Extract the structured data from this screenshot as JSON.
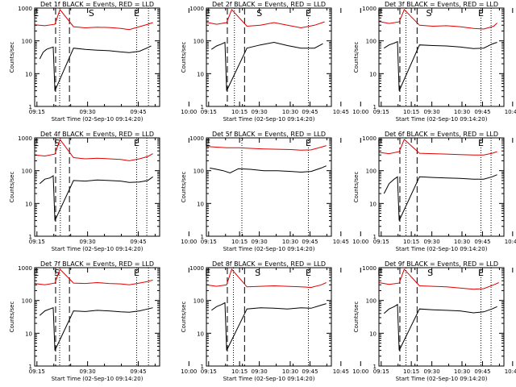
{
  "figure": {
    "panel_template": {
      "xlabel": "Start Time (02-Sep-10 09:14:20)",
      "ylabel": "Counts/sec",
      "x_tick_labels": [
        "09:15",
        "09:30",
        "09:45",
        "10:00",
        "10:15",
        "10:30",
        "10:45"
      ],
      "y_tick_labels": [
        "1",
        "10",
        "100",
        "1000"
      ]
    },
    "colors": {
      "events": "#000000",
      "lld": "#e00000",
      "axes": "#000000"
    }
  },
  "chart_data": [
    {
      "type": "line",
      "title": "Det 1f BLACK = Events, RED = LLD",
      "xlabel": "Start Time (02-Sep-10 09:14:20)",
      "ylabel": "Counts/sec",
      "x_unit": "minutes after 09:14:20",
      "xlim": [
        0,
        37
      ],
      "ylim": [
        1,
        1000
      ],
      "y_scale": "log",
      "grid": false,
      "markers": [
        {
          "label": "S",
          "x": 16.8
        },
        {
          "label": "E",
          "x": 0.4
        },
        {
          "label": "E",
          "x": 30.2
        }
      ],
      "dashed_lines_x": [
        6.2,
        10.3
      ],
      "dotted_lines_x": [
        7.4,
        30.2,
        33.7
      ],
      "series": [
        {
          "name": "Events",
          "color": "#000000",
          "x": [
            1.5,
            2.5,
            3.5,
            4.5,
            5.5,
            6.0,
            11.5,
            15.0,
            18.5,
            22.0,
            25.5,
            28.0,
            31.0,
            33.5,
            34.5
          ],
          "y": [
            28,
            45,
            55,
            60,
            65,
            3,
            60,
            55,
            52,
            50,
            46,
            44,
            48,
            62,
            70
          ]
        },
        {
          "name": "LLD",
          "color": "#e00000",
          "x": [
            0.0,
            3.0,
            6.0,
            7.5,
            11.5,
            15.0,
            18.5,
            22.0,
            25.5,
            28.0,
            31.0,
            33.5,
            35.0
          ],
          "y": [
            310,
            290,
            320,
            900,
            270,
            250,
            260,
            255,
            240,
            220,
            270,
            320,
            360
          ]
        }
      ]
    },
    {
      "type": "line",
      "title": "Det 2f BLACK = Events, RED = LLD",
      "xlabel": "Start Time (02-Sep-10 09:14:20)",
      "ylabel": "Counts/sec",
      "x_unit": "minutes after 09:14:20",
      "xlim": [
        0,
        37
      ],
      "ylim": [
        1,
        1000
      ],
      "y_scale": "log",
      "grid": false,
      "markers": [
        {
          "label": "S",
          "x": 15.7
        },
        {
          "label": "E",
          "x": 0.4
        },
        {
          "label": "E",
          "x": 30.2
        }
      ],
      "dashed_lines_x": [
        6.2,
        11.3
      ],
      "dotted_lines_x": [
        8.3,
        30.2
      ],
      "series": [
        {
          "name": "Events",
          "color": "#000000",
          "x": [
            1.5,
            3.0,
            4.5,
            5.5,
            6.0,
            12.0,
            16.0,
            20.0,
            24.0,
            28.0,
            32.0,
            34.5
          ],
          "y": [
            55,
            70,
            80,
            90,
            3,
            60,
            75,
            90,
            72,
            60,
            60,
            82
          ]
        },
        {
          "name": "LLD",
          "color": "#e00000",
          "x": [
            0.0,
            3.0,
            6.0,
            7.5,
            12.0,
            16.0,
            20.0,
            24.0,
            28.0,
            32.0,
            35.0
          ],
          "y": [
            370,
            320,
            360,
            900,
            280,
            300,
            360,
            300,
            250,
            300,
            380
          ]
        }
      ]
    },
    {
      "type": "line",
      "title": "Det 3f BLACK = Events, RED = LLD",
      "xlabel": "Start Time (02-Sep-10 09:14:20)",
      "ylabel": "Counts/sec",
      "x_unit": "minutes after 09:14:20",
      "xlim": [
        0,
        37
      ],
      "ylim": [
        1,
        1000
      ],
      "y_scale": "log",
      "grid": false,
      "markers": [
        {
          "label": "S",
          "x": 14.8
        },
        {
          "label": "E",
          "x": 0.4
        },
        {
          "label": "E",
          "x": 30.2
        }
      ],
      "dashed_lines_x": [
        6.2,
        11.3
      ],
      "dotted_lines_x": [
        8.0,
        30.2,
        33.2
      ],
      "series": [
        {
          "name": "Events",
          "color": "#000000",
          "x": [
            1.5,
            3.0,
            4.5,
            5.5,
            6.0,
            12.0,
            16.0,
            20.0,
            24.0,
            28.0,
            31.0,
            33.5,
            35.0
          ],
          "y": [
            60,
            75,
            85,
            95,
            3,
            75,
            72,
            70,
            65,
            58,
            60,
            80,
            90
          ]
        },
        {
          "name": "LLD",
          "color": "#e00000",
          "x": [
            0.0,
            3.0,
            6.0,
            7.5,
            12.0,
            16.0,
            20.0,
            24.0,
            28.0,
            31.0,
            34.0,
            35.0
          ],
          "y": [
            390,
            340,
            380,
            900,
            300,
            280,
            290,
            270,
            240,
            230,
            280,
            350
          ]
        }
      ]
    },
    {
      "type": "line",
      "title": "Det 4f BLACK = Events, RED = LLD",
      "xlabel": "Start Time (02-Sep-10 09:14:20)",
      "ylabel": "Counts/sec",
      "x_unit": "minutes after 09:14:20",
      "xlim": [
        0,
        37
      ],
      "ylim": [
        1,
        1000
      ],
      "y_scale": "log",
      "grid": false,
      "markers": [
        {
          "label": "S",
          "x": 6.6
        },
        {
          "label": "E",
          "x": 0.4
        },
        {
          "label": "E",
          "x": 30.2
        }
      ],
      "dashed_lines_x": [
        6.2,
        10.3
      ],
      "dotted_lines_x": [
        7.6,
        30.2,
        33.2
      ],
      "series": [
        {
          "name": "Events",
          "color": "#000000",
          "x": [
            1.5,
            3.0,
            4.5,
            5.5,
            6.0,
            11.5,
            15.0,
            18.5,
            22.0,
            25.5,
            28.0,
            31.0,
            33.5,
            35.0
          ],
          "y": [
            40,
            55,
            60,
            70,
            3,
            50,
            48,
            52,
            50,
            48,
            44,
            45,
            50,
            65
          ]
        },
        {
          "name": "LLD",
          "color": "#e00000",
          "x": [
            0.0,
            3.0,
            6.0,
            7.5,
            11.5,
            15.0,
            18.5,
            22.0,
            25.5,
            28.0,
            31.0,
            33.5,
            35.0
          ],
          "y": [
            300,
            280,
            320,
            900,
            250,
            230,
            240,
            230,
            220,
            200,
            230,
            270,
            330
          ]
        }
      ]
    },
    {
      "type": "line",
      "title": "Det 5f BLACK = Events, RED = LLD",
      "xlabel": "Start Time (02-Sep-10 09:14:20)",
      "ylabel": "Counts/sec",
      "x_unit": "minutes after 09:14:20",
      "xlim": [
        0,
        37
      ],
      "ylim": [
        1,
        1000
      ],
      "y_scale": "log",
      "grid": false,
      "markers": [
        {
          "label": "E",
          "x": 0.4
        },
        {
          "label": "E",
          "x": 30.2
        }
      ],
      "dashed_lines_x": [],
      "dotted_lines_x": [
        10.5,
        30.2
      ],
      "series": [
        {
          "name": "Events",
          "color": "#000000",
          "x": [
            1.0,
            3.0,
            5.0,
            7.0,
            9.5,
            13.0,
            17.0,
            21.0,
            25.0,
            28.0,
            31.0,
            34.0,
            35.5
          ],
          "y": [
            120,
            110,
            100,
            85,
            115,
            110,
            100,
            100,
            95,
            90,
            95,
            120,
            140
          ]
        },
        {
          "name": "LLD",
          "color": "#e00000",
          "x": [
            0.0,
            3.0,
            6.0,
            9.5,
            13.0,
            17.0,
            21.0,
            25.0,
            28.0,
            31.0,
            34.0,
            35.5
          ],
          "y": [
            550,
            520,
            500,
            500,
            480,
            460,
            450,
            440,
            420,
            430,
            520,
            580
          ]
        }
      ]
    },
    {
      "type": "line",
      "title": "Det 6f BLACK = Events, RED = LLD",
      "xlabel": "Start Time (02-Sep-10 09:14:20)",
      "ylabel": "Counts/sec",
      "x_unit": "minutes after 09:14:20",
      "xlim": [
        0,
        37
      ],
      "ylim": [
        1,
        1000
      ],
      "y_scale": "log",
      "grid": false,
      "markers": [
        {
          "label": "E",
          "x": 0.4
        },
        {
          "label": "E",
          "x": 30.2
        }
      ],
      "dashed_lines_x": [
        6.2,
        11.3
      ],
      "dotted_lines_x": [
        8.0,
        30.2,
        33.2
      ],
      "series": [
        {
          "name": "Events",
          "color": "#000000",
          "x": [
            1.5,
            3.0,
            4.5,
            5.5,
            6.0,
            12.0,
            16.0,
            20.0,
            24.0,
            28.0,
            31.0,
            33.5,
            35.0
          ],
          "y": [
            20,
            40,
            55,
            65,
            3,
            65,
            62,
            60,
            58,
            55,
            55,
            65,
            75
          ]
        },
        {
          "name": "LLD",
          "color": "#e00000",
          "x": [
            0.0,
            3.0,
            6.0,
            7.5,
            12.0,
            16.0,
            20.0,
            24.0,
            28.0,
            31.0,
            33.5,
            35.0
          ],
          "y": [
            360,
            330,
            380,
            900,
            340,
            330,
            320,
            310,
            300,
            300,
            340,
            380
          ]
        }
      ]
    },
    {
      "type": "line",
      "title": "Det 7f BLACK = Events, RED = LLD",
      "xlabel": "Start Time (02-Sep-10 09:14:20)",
      "ylabel": "Counts/sec",
      "x_unit": "minutes after 09:14:20",
      "xlim": [
        0,
        37
      ],
      "ylim": [
        1,
        1000
      ],
      "y_scale": "log",
      "grid": false,
      "markers": [
        {
          "label": "S",
          "x": 6.6
        },
        {
          "label": "E",
          "x": 0.4
        },
        {
          "label": "E",
          "x": 30.2
        }
      ],
      "dashed_lines_x": [
        6.2,
        10.3
      ],
      "dotted_lines_x": [
        7.4,
        30.2,
        33.7
      ],
      "series": [
        {
          "name": "Events",
          "color": "#000000",
          "x": [
            1.5,
            3.0,
            4.5,
            5.5,
            6.0,
            11.5,
            15.0,
            18.5,
            22.0,
            25.5,
            28.0,
            31.0,
            33.5,
            35.0
          ],
          "y": [
            35,
            48,
            55,
            60,
            3,
            48,
            46,
            50,
            48,
            45,
            44,
            48,
            55,
            60
          ]
        },
        {
          "name": "LLD",
          "color": "#e00000",
          "x": [
            0.0,
            3.0,
            6.0,
            7.5,
            11.5,
            15.0,
            18.5,
            22.0,
            25.5,
            28.0,
            31.0,
            33.5,
            35.0
          ],
          "y": [
            330,
            300,
            340,
            900,
            340,
            330,
            350,
            330,
            320,
            300,
            340,
            380,
            420
          ]
        }
      ]
    },
    {
      "type": "line",
      "title": "Det 8f BLACK = Events, RED = LLD",
      "xlabel": "Start Time (02-Sep-10 09:14:20)",
      "ylabel": "Counts/sec",
      "x_unit": "minutes after 09:14:20",
      "xlim": [
        0,
        37
      ],
      "ylim": [
        1,
        1000
      ],
      "y_scale": "log",
      "grid": false,
      "markers": [
        {
          "label": "S",
          "x": 15.2
        },
        {
          "label": "E",
          "x": 0.4
        },
        {
          "label": "E",
          "x": 30.2
        }
      ],
      "dashed_lines_x": [
        6.2,
        11.3
      ],
      "dotted_lines_x": [
        8.0,
        30.2
      ],
      "series": [
        {
          "name": "Events",
          "color": "#000000",
          "x": [
            1.5,
            3.0,
            4.5,
            5.5,
            6.0,
            12.0,
            16.0,
            20.0,
            24.0,
            28.0,
            31.0,
            34.0,
            35.5
          ],
          "y": [
            50,
            65,
            75,
            85,
            3,
            55,
            60,
            58,
            55,
            60,
            58,
            72,
            80
          ]
        },
        {
          "name": "LLD",
          "color": "#e00000",
          "x": [
            0.0,
            3.0,
            6.0,
            7.5,
            12.0,
            16.0,
            20.0,
            24.0,
            28.0,
            31.0,
            34.0,
            35.5
          ],
          "y": [
            300,
            270,
            300,
            900,
            260,
            270,
            280,
            270,
            260,
            250,
            300,
            350
          ]
        }
      ]
    },
    {
      "type": "line",
      "title": "Det 9f BLACK = Events, RED = LLD",
      "xlabel": "Start Time (02-Sep-10 09:14:20)",
      "ylabel": "Counts/sec",
      "x_unit": "minutes after 09:14:20",
      "xlim": [
        0,
        37
      ],
      "ylim": [
        1,
        1000
      ],
      "y_scale": "log",
      "grid": false,
      "markers": [
        {
          "label": "S",
          "x": 15.2
        },
        {
          "label": "E",
          "x": 0.4
        },
        {
          "label": "E",
          "x": 30.2
        }
      ],
      "dashed_lines_x": [
        6.2,
        11.3
      ],
      "dotted_lines_x": [
        8.0,
        30.2,
        33.2
      ],
      "series": [
        {
          "name": "Events",
          "color": "#000000",
          "x": [
            1.5,
            3.0,
            4.5,
            5.5,
            6.0,
            12.0,
            16.0,
            20.0,
            24.0,
            28.0,
            31.0,
            33.5,
            35.0
          ],
          "y": [
            40,
            55,
            65,
            75,
            3,
            55,
            52,
            50,
            48,
            42,
            45,
            55,
            65
          ]
        },
        {
          "name": "LLD",
          "color": "#e00000",
          "x": [
            0.0,
            3.0,
            6.0,
            7.5,
            12.0,
            16.0,
            20.0,
            24.0,
            28.0,
            31.0,
            34.0,
            35.5
          ],
          "y": [
            350,
            310,
            340,
            900,
            280,
            270,
            260,
            240,
            220,
            230,
            300,
            350
          ]
        }
      ]
    }
  ]
}
